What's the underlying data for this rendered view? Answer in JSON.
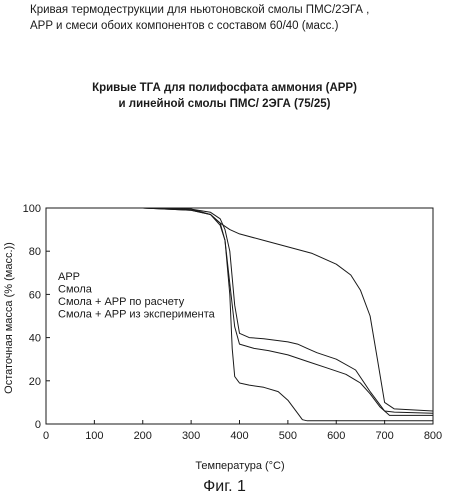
{
  "figure": {
    "caption_line1": "Кривая термодеструкции для ньютоновской смолы ПМС/2ЭГА ,",
    "caption_line2": "APP и смеси обоих компонентов с составом 60/40 (масс.)",
    "label": "Фиг. 1"
  },
  "chart_data": {
    "type": "line",
    "title_line1": "Кривые ТГА для полифосфата аммония (APP)",
    "title_line2": "и линейной смолы ПМС/ 2ЭГА (75/25)",
    "xlabel_prefix": "Температура (",
    "xlabel_unit": "°C)",
    "ylabel": "Остаточная масса (% (масс.))",
    "xlim": [
      0,
      800
    ],
    "ylim": [
      0,
      100
    ],
    "x_ticks": [
      "0",
      "100",
      "200",
      "300",
      "400",
      "500",
      "600",
      "700",
      "800"
    ],
    "y_ticks": [
      "0",
      "20",
      "40",
      "60",
      "80",
      "100"
    ],
    "grid": false,
    "legend_position": "left-middle",
    "series": [
      {
        "name": "APP",
        "x": [
          20,
          100,
          200,
          300,
          340,
          360,
          380,
          400,
          450,
          500,
          550,
          600,
          630,
          650,
          670,
          685,
          700,
          720,
          800
        ],
        "y": [
          100,
          100,
          100,
          99.5,
          97,
          93,
          90,
          88,
          85,
          82,
          79,
          74,
          69,
          62,
          50,
          30,
          10,
          7,
          6
        ]
      },
      {
        "name": "Смола",
        "x": [
          20,
          100,
          200,
          300,
          340,
          360,
          370,
          380,
          385,
          390,
          400,
          420,
          450,
          480,
          500,
          520,
          530,
          540,
          560,
          600,
          700,
          800
        ],
        "y": [
          100,
          100,
          100,
          99,
          97,
          92,
          85,
          60,
          35,
          22,
          19,
          18,
          17,
          15,
          11,
          5,
          2,
          1.5,
          1.5,
          1.5,
          1.5,
          1.5
        ]
      },
      {
        "name": "Смола + APP по расчету",
        "x": [
          20,
          100,
          200,
          300,
          340,
          360,
          370,
          380,
          390,
          400,
          430,
          460,
          500,
          540,
          580,
          620,
          650,
          670,
          690,
          710,
          800
        ],
        "y": [
          100,
          100,
          100,
          99,
          97,
          93,
          85,
          65,
          45,
          37,
          35,
          34,
          32,
          29,
          26,
          23,
          19,
          14,
          8,
          4,
          4
        ]
      },
      {
        "name": "Смола + APP из эксперимента",
        "x": [
          20,
          100,
          200,
          300,
          340,
          360,
          370,
          380,
          390,
          400,
          420,
          450,
          500,
          520,
          540,
          560,
          600,
          640,
          670,
          690,
          700,
          720,
          800
        ],
        "y": [
          100,
          100,
          100,
          99.5,
          98,
          95,
          90,
          80,
          55,
          42,
          40,
          39.5,
          38,
          37,
          35,
          33,
          30,
          25,
          15,
          9,
          6,
          5.5,
          5
        ]
      }
    ]
  }
}
